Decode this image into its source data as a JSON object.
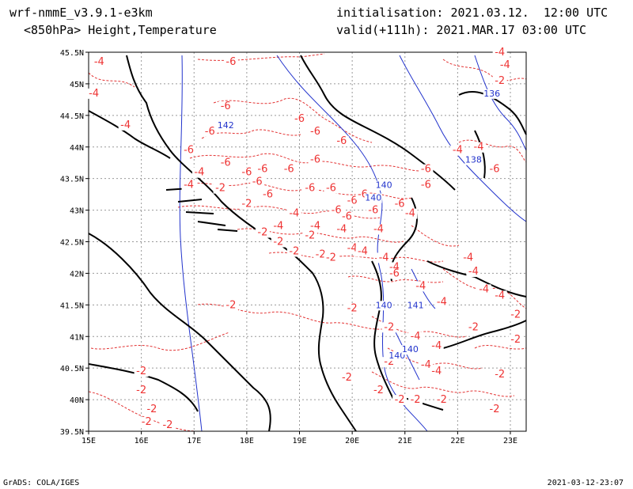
{
  "header": {
    "model": "wrf-nmmE_v3.9.1-e3km",
    "field": "<850hPa> Height,Temperature",
    "initialisation": "initialisation: 2021.03.12.  12:00 UTC",
    "valid": "valid(+111h): 2021.MAR.17 03:00 UTC"
  },
  "footer": {
    "left": "GrADS: COLA/IGES",
    "right": "2021-03-12-23:07"
  },
  "colors": {
    "temperature": "#e33333",
    "height": "#2233cc",
    "coast": "#000000",
    "grid": "#999999"
  },
  "map": {
    "lon_labels": [
      "15E",
      "16E",
      "17E",
      "18E",
      "19E",
      "20E",
      "21E",
      "22E",
      "23E"
    ],
    "lat_labels": [
      "39.5N",
      "40N",
      "40.5N",
      "41N",
      "41.5N",
      "42N",
      "42.5N",
      "43N",
      "43.5N",
      "44N",
      "44.5N",
      "45N",
      "45.5N"
    ],
    "lon_range": [
      15,
      23.3
    ],
    "lat_range": [
      39.5,
      45.5
    ]
  },
  "temperature_labels": [
    {
      "text": "-4",
      "lon": 15.2,
      "lat": 45.3
    },
    {
      "text": "-4",
      "lon": 15.1,
      "lat": 44.8
    },
    {
      "text": "-4",
      "lon": 15.7,
      "lat": 44.3
    },
    {
      "text": "-6",
      "lon": 17.7,
      "lat": 45.3
    },
    {
      "text": "-6",
      "lon": 17.6,
      "lat": 44.6
    },
    {
      "text": "-6",
      "lon": 17.3,
      "lat": 44.2
    },
    {
      "text": "-6",
      "lon": 16.9,
      "lat": 43.9
    },
    {
      "text": "-6",
      "lon": 17.6,
      "lat": 43.7
    },
    {
      "text": "-6",
      "lon": 18.0,
      "lat": 43.55
    },
    {
      "text": "-6",
      "lon": 18.3,
      "lat": 43.6
    },
    {
      "text": "-6",
      "lon": 18.2,
      "lat": 43.4
    },
    {
      "text": "-4",
      "lon": 17.1,
      "lat": 43.55
    },
    {
      "text": "-4",
      "lon": 16.9,
      "lat": 43.35
    },
    {
      "text": "-2",
      "lon": 17.5,
      "lat": 43.3
    },
    {
      "text": "-2",
      "lon": 18.0,
      "lat": 43.05
    },
    {
      "text": "-6",
      "lon": 18.4,
      "lat": 43.2
    },
    {
      "text": "-6",
      "lon": 19.0,
      "lat": 44.4
    },
    {
      "text": "-6",
      "lon": 19.3,
      "lat": 44.2
    },
    {
      "text": "-6",
      "lon": 19.8,
      "lat": 44.05
    },
    {
      "text": "-6",
      "lon": 19.3,
      "lat": 43.75
    },
    {
      "text": "-6",
      "lon": 18.8,
      "lat": 43.6
    },
    {
      "text": "-6",
      "lon": 19.2,
      "lat": 43.3
    },
    {
      "text": "-6",
      "lon": 19.6,
      "lat": 43.3
    },
    {
      "text": "-6",
      "lon": 20.0,
      "lat": 43.1
    },
    {
      "text": "-6",
      "lon": 20.2,
      "lat": 43.2
    },
    {
      "text": "-6",
      "lon": 19.7,
      "lat": 42.95
    },
    {
      "text": "-6",
      "lon": 19.9,
      "lat": 42.85
    },
    {
      "text": "-6",
      "lon": 20.4,
      "lat": 42.95
    },
    {
      "text": "-6",
      "lon": 20.9,
      "lat": 43.05
    },
    {
      "text": "-6",
      "lon": 21.4,
      "lat": 43.35
    },
    {
      "text": "-4",
      "lon": 21.1,
      "lat": 42.9
    },
    {
      "text": "-4",
      "lon": 18.9,
      "lat": 42.9
    },
    {
      "text": "-4",
      "lon": 18.6,
      "lat": 42.7
    },
    {
      "text": "-4",
      "lon": 19.3,
      "lat": 42.7
    },
    {
      "text": "-4",
      "lon": 19.8,
      "lat": 42.65
    },
    {
      "text": "-4",
      "lon": 20.5,
      "lat": 42.65
    },
    {
      "text": "-2",
      "lon": 18.3,
      "lat": 42.6
    },
    {
      "text": "-2",
      "lon": 18.6,
      "lat": 42.45
    },
    {
      "text": "-2",
      "lon": 18.9,
      "lat": 42.3
    },
    {
      "text": "-2",
      "lon": 19.2,
      "lat": 42.55
    },
    {
      "text": "-2",
      "lon": 19.4,
      "lat": 42.25
    },
    {
      "text": "-2",
      "lon": 19.6,
      "lat": 42.2
    },
    {
      "text": "-4",
      "lon": 20.0,
      "lat": 42.35
    },
    {
      "text": "-4",
      "lon": 20.2,
      "lat": 42.3
    },
    {
      "text": "-4",
      "lon": 20.6,
      "lat": 42.2
    },
    {
      "text": "-4",
      "lon": 20.8,
      "lat": 42.05
    },
    {
      "text": "-6",
      "lon": 20.8,
      "lat": 41.95
    },
    {
      "text": "-4",
      "lon": 21.3,
      "lat": 41.75
    },
    {
      "text": "-2",
      "lon": 20.0,
      "lat": 41.4
    },
    {
      "text": "-2",
      "lon": 17.7,
      "lat": 41.45
    },
    {
      "text": "-2",
      "lon": 20.7,
      "lat": 41.1
    },
    {
      "text": "-4",
      "lon": 21.7,
      "lat": 41.5
    },
    {
      "text": "-4",
      "lon": 21.2,
      "lat": 40.95
    },
    {
      "text": "-4",
      "lon": 21.6,
      "lat": 40.8
    },
    {
      "text": "-4",
      "lon": 21.4,
      "lat": 40.5
    },
    {
      "text": "-4",
      "lon": 21.6,
      "lat": 40.4
    },
    {
      "text": "-2",
      "lon": 20.7,
      "lat": 40.55
    },
    {
      "text": "-2",
      "lon": 19.9,
      "lat": 40.3
    },
    {
      "text": "-2",
      "lon": 20.5,
      "lat": 40.1
    },
    {
      "text": "-2",
      "lon": 20.9,
      "lat": 39.95
    },
    {
      "text": "-2",
      "lon": 21.2,
      "lat": 39.95
    },
    {
      "text": "-2",
      "lon": 21.7,
      "lat": 39.95
    },
    {
      "text": "-2",
      "lon": 22.3,
      "lat": 41.1
    },
    {
      "text": "-2",
      "lon": 22.8,
      "lat": 40.35
    },
    {
      "text": "-2",
      "lon": 22.7,
      "lat": 39.8
    },
    {
      "text": "-2",
      "lon": 23.1,
      "lat": 41.3
    },
    {
      "text": "-2",
      "lon": 23.1,
      "lat": 40.9
    },
    {
      "text": "-4",
      "lon": 22.2,
      "lat": 42.2
    },
    {
      "text": "-4",
      "lon": 22.3,
      "lat": 41.98
    },
    {
      "text": "-4",
      "lon": 22.5,
      "lat": 41.7
    },
    {
      "text": "-4",
      "lon": 22.8,
      "lat": 41.6
    },
    {
      "text": "-4",
      "lon": 22.0,
      "lat": 43.9
    },
    {
      "text": "-4",
      "lon": 22.4,
      "lat": 43.95
    },
    {
      "text": "-6",
      "lon": 21.4,
      "lat": 43.6
    },
    {
      "text": "-6",
      "lon": 22.7,
      "lat": 43.6
    },
    {
      "text": "-4",
      "lon": 22.8,
      "lat": 45.45
    },
    {
      "text": "-4",
      "lon": 22.9,
      "lat": 45.25
    },
    {
      "text": "-2",
      "lon": 22.8,
      "lat": 45.0
    },
    {
      "text": "-2",
      "lon": 16.0,
      "lat": 40.4
    },
    {
      "text": "-2",
      "lon": 16.0,
      "lat": 40.1
    },
    {
      "text": "-2",
      "lon": 16.2,
      "lat": 39.8
    },
    {
      "text": "-2",
      "lon": 16.1,
      "lat": 39.6
    },
    {
      "text": "-2",
      "lon": 16.5,
      "lat": 39.55
    }
  ],
  "height_labels": [
    {
      "text": "142",
      "lon": 17.6,
      "lat": 44.3
    },
    {
      "text": "136",
      "lon": 22.65,
      "lat": 44.8
    },
    {
      "text": "138",
      "lon": 22.3,
      "lat": 43.75
    },
    {
      "text": "140",
      "lon": 20.6,
      "lat": 43.35
    },
    {
      "text": "140",
      "lon": 20.4,
      "lat": 43.15
    },
    {
      "text": "140",
      "lon": 20.6,
      "lat": 41.45
    },
    {
      "text": "141",
      "lon": 21.2,
      "lat": 41.45
    },
    {
      "text": "140",
      "lon": 20.85,
      "lat": 40.65
    },
    {
      "text": "140",
      "lon": 21.1,
      "lat": 40.75
    }
  ]
}
